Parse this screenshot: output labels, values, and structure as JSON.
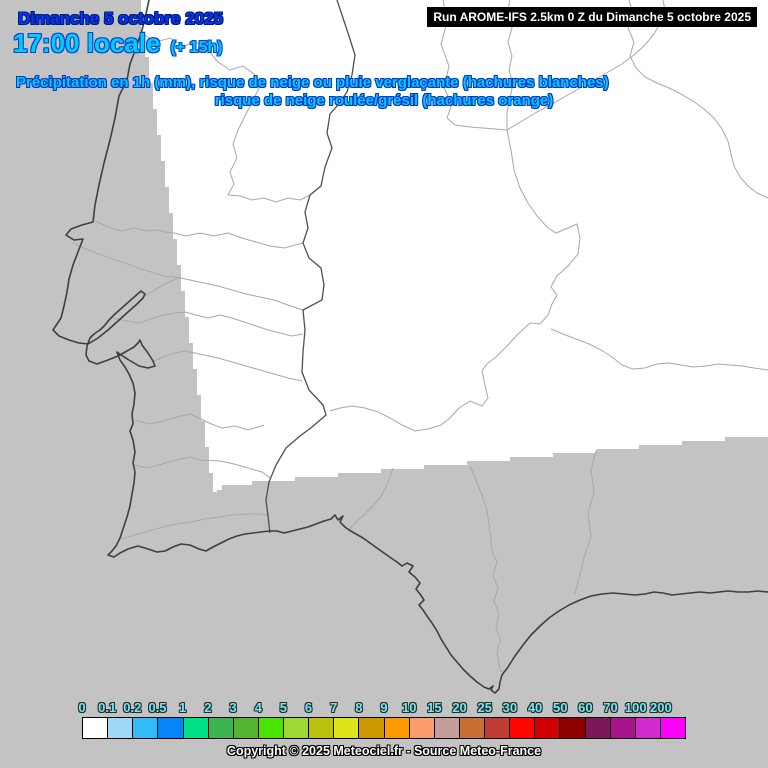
{
  "header": {
    "date": "Dimanche 5 octobre 2025",
    "time": "17:00 locale",
    "offset": "(+ 15h)",
    "subtitle_line1": "Précipitation en 1h (mm), risque de neige ou pluie verglaçante (hachures blanches)",
    "subtitle_line2": "risque de neige roulée/grésil (hachures orange)"
  },
  "run_banner": {
    "text": "Run AROME-IFS 2.5km 0 Z du Dimanche 5 octobre 2025"
  },
  "footer": {
    "copyright": "Copyright © 2025 Meteociel.fr - Source Meteo-France"
  },
  "colors": {
    "sea_gray": "#c3c3c3",
    "land_domain_white": "#ffffff",
    "date_blue": "#0536f2",
    "title_cyan": "#00ccff",
    "scale_label_cyan": "#70e9f0",
    "coastline": "#3f3f3f",
    "country_border": "#4f4f4f",
    "admin_border": "#a8a8a8"
  },
  "chart_data": {
    "type": "heatmap",
    "title": "Précipitation en 1h (mm)",
    "legend_position": "bottom",
    "unit": "mm",
    "tick_labels": [
      "0",
      "0.1",
      "0.2",
      "0.5",
      "1",
      "2",
      "3",
      "4",
      "5",
      "6",
      "7",
      "8",
      "9",
      "10",
      "15",
      "20",
      "25",
      "30",
      "40",
      "50",
      "60",
      "70",
      "100",
      "200"
    ],
    "thresholds_mm": [
      0,
      0.1,
      0.2,
      0.5,
      1,
      2,
      3,
      4,
      5,
      6,
      7,
      8,
      9,
      10,
      15,
      20,
      25,
      30,
      40,
      50,
      60,
      70,
      100,
      200
    ],
    "cell_colors": [
      "#ffffff",
      "#a0d8f8",
      "#30bcf8",
      "#0884f8",
      "#00e087",
      "#3cb450",
      "#53b52f",
      "#49e402",
      "#a0d838",
      "#bac20e",
      "#dde51a",
      "#cc9900",
      "#ff9900",
      "#fc9d6e",
      "#c49c9c",
      "#c87034",
      "#c03c34",
      "#fc0800",
      "#d00000",
      "#8c0000",
      "#7c1858",
      "#a8148c",
      "#d02cd0",
      "#ff00ff"
    ],
    "map_values_note": "Entire visible model domain shows 0 mm (white); gray area is outside model domain"
  }
}
